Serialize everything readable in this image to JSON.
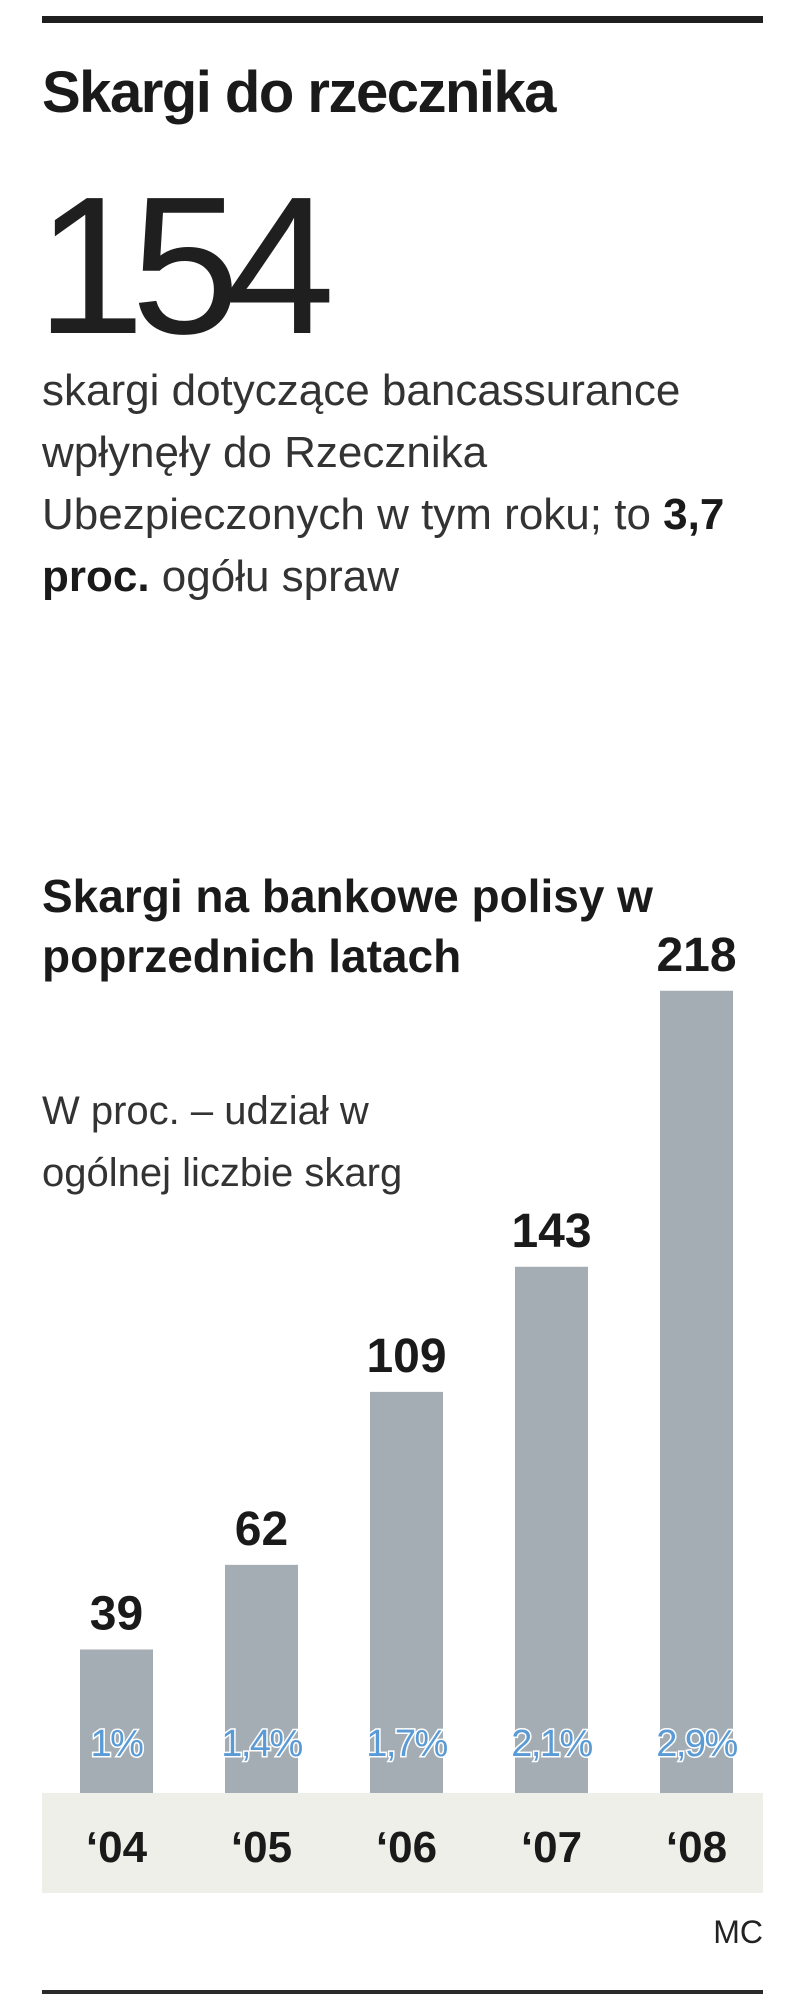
{
  "header": {
    "title": "Skargi do rzecznika"
  },
  "lead": {
    "number": "154",
    "text_before": "skargi dotyczące bancassurance wpłynęły do Rzecznika Ubezpieczonych w tym roku; to ",
    "text_bold": "3,7 proc.",
    "text_after": " ogółu spraw"
  },
  "chart_data": {
    "type": "bar",
    "title": "Skargi na bankowe polisy w poprzednich latach",
    "subtitle": "W proc. – udział w ogólnej liczbie skarg",
    "categories": [
      "‘04",
      "‘05",
      "‘06",
      "‘07",
      "‘08"
    ],
    "values": [
      39,
      62,
      109,
      143,
      218
    ],
    "shares": [
      "1%",
      "1,4%",
      "1,7%",
      "2,1%",
      "2,9%"
    ],
    "colors": {
      "bar": "#a4adb4",
      "share_label": "#5b9bd5",
      "axis_band": "#efefe9",
      "value_label": "#1a1a1a"
    }
  },
  "footer": {
    "credit": "MC"
  }
}
